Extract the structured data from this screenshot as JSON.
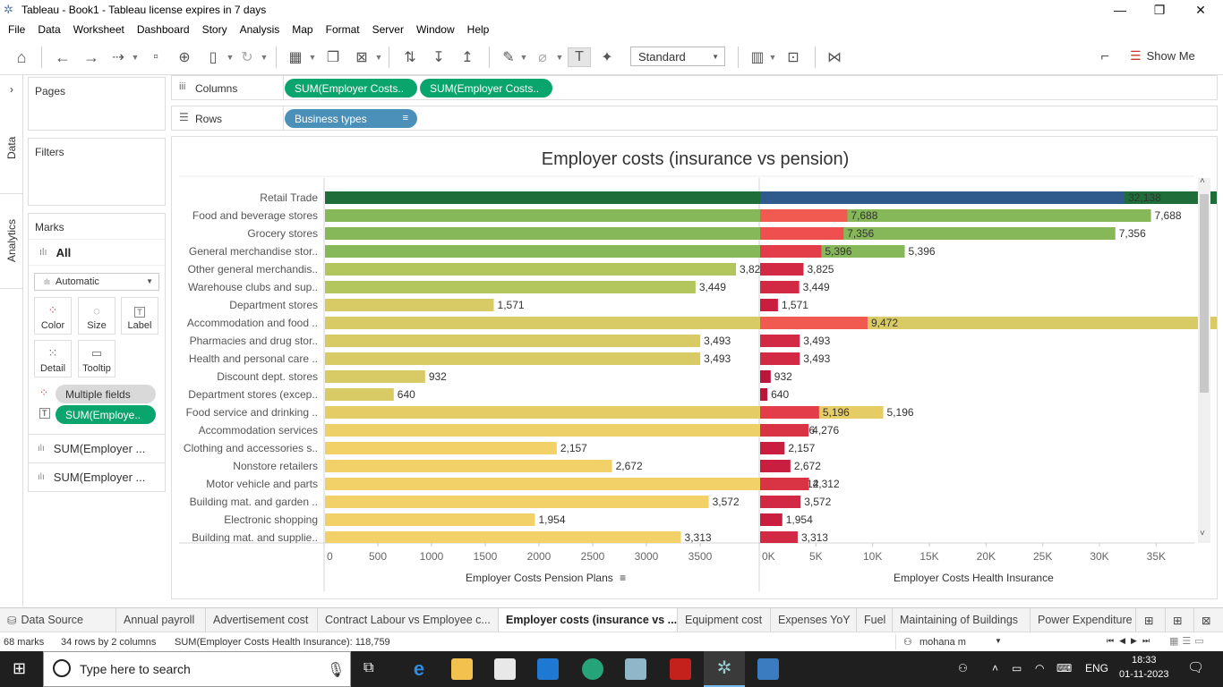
{
  "window": {
    "title": "Tableau - Book1 - Tableau license expires in 7 days",
    "minimize": "—",
    "restore": "❐",
    "close": "✕"
  },
  "menu": [
    "File",
    "Data",
    "Worksheet",
    "Dashboard",
    "Story",
    "Analysis",
    "Map",
    "Format",
    "Server",
    "Window",
    "Help"
  ],
  "toolbar": {
    "fit": "Standard",
    "show_me": "Show Me"
  },
  "side_tabs": {
    "data": "Data",
    "analytics": "Analytics"
  },
  "pages_label": "Pages",
  "filters_label": "Filters",
  "marks": {
    "label": "Marks",
    "all": "All",
    "mark_type": "Automatic",
    "buttons": [
      "Color",
      "Size",
      "Label",
      "Detail",
      "Tooltip"
    ],
    "multiple_fields": "Multiple fields",
    "label_pill": "SUM(Employe..",
    "card1": "SUM(Employer ...",
    "card2": "SUM(Employer ..."
  },
  "columns_shelf": {
    "label": "Columns",
    "pills": [
      "SUM(Employer Costs..",
      "SUM(Employer Costs.."
    ]
  },
  "rows_shelf": {
    "label": "Rows",
    "pill": "Business types"
  },
  "chart_data": {
    "type": "bar",
    "title": "Employer costs (insurance vs pension)",
    "categories": [
      "Retail Trade",
      "Food and beverage stores",
      "Grocery stores",
      "General merchandise stor..",
      "Other general merchandis..",
      "Warehouse clubs and sup..",
      "Department stores",
      "Accommodation and food ..",
      "Pharmacies and drug stor..",
      "Health and personal care ..",
      "Discount dept. stores",
      "Department stores (excep..",
      "Food service and drinking ..",
      "Accommodation services",
      "Clothing and accessories s..",
      "Nonstore retailers",
      "Motor vehicle and parts",
      "Building mat. and garden ..",
      "Electronic shopping",
      "Building mat. and supplie.."
    ],
    "series": [
      {
        "name": "Employer Costs Pension Plans",
        "values": [
          32138,
          7688,
          7356,
          5396,
          3825,
          3449,
          1571,
          9472,
          3493,
          3493,
          932,
          640,
          5196,
          4276,
          2157,
          2672,
          4312,
          3572,
          1954,
          3313
        ],
        "bar_colors": [
          "#1f6e3a",
          "#86b85a",
          "#86b85a",
          "#86b85a",
          "#b3c65e",
          "#b3c65e",
          "#d8ca64",
          "#d8ca64",
          "#d8ca64",
          "#d8ca64",
          "#d8ca64",
          "#d8ca64",
          "#e6cc64",
          "#edd067",
          "#f1d168",
          "#f1d168",
          "#f1d168",
          "#f1d168",
          "#f1d168",
          "#f1d168"
        ],
        "xticks": [
          0,
          500,
          1000,
          1500,
          2000,
          2500,
          3000,
          3500
        ],
        "xlim": [
          0,
          3800
        ]
      },
      {
        "name": "Employer Costs Health Insurance",
        "values": [
          32138,
          7688,
          7356,
          5396,
          3825,
          3449,
          1571,
          9472,
          3493,
          3493,
          932,
          640,
          5196,
          4276,
          2157,
          2672,
          4312,
          3572,
          1954,
          3313
        ],
        "bar_colors": [
          "#2f5a8c",
          "#f05a50",
          "#ef4f4e",
          "#e23d48",
          "#d22a44",
          "#d22a44",
          "#c91e3f",
          "#f05a50",
          "#d22a44",
          "#d22a44",
          "#b8163a",
          "#b8163a",
          "#e23d48",
          "#d83444",
          "#c91e3f",
          "#c91e3f",
          "#d83444",
          "#d22a44",
          "#c91e3f",
          "#d22a44"
        ],
        "xticks": [
          0,
          5000,
          10000,
          15000,
          20000,
          25000,
          30000,
          35000
        ],
        "xtick_labels": [
          "0K",
          "5K",
          "10K",
          "15K",
          "20K",
          "25K",
          "30K",
          "35K"
        ],
        "xlim": [
          0,
          36000
        ]
      }
    ]
  },
  "sheet_tabs": [
    "Data Source",
    "Annual payroll",
    "Advertisement cost",
    "Contract Labour vs Employee c...",
    "Employer costs (insurance vs ...",
    "Equipment cost",
    "Expenses YoY",
    "Fuel",
    "Maintaining of Buildings",
    "Power Expenditure"
  ],
  "active_tab": 4,
  "status": {
    "marks": "68 marks",
    "rows": "34 rows by 2 columns",
    "sum": "SUM(Employer Costs Health Insurance): 118,759",
    "user": "mohana m"
  },
  "taskbar": {
    "search_placeholder": "Type here to search",
    "lang": "ENG",
    "time": "18:33",
    "date": "01-11-2023"
  }
}
